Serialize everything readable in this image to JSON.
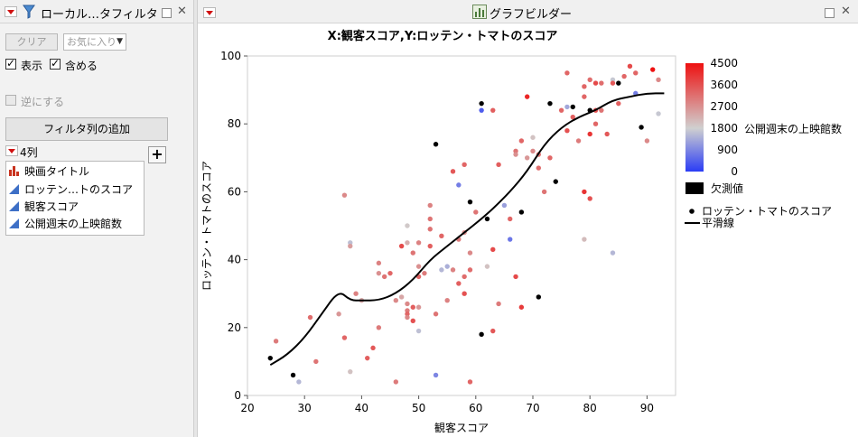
{
  "left_panel": {
    "title": "ローカル…タフィルタ",
    "clear_label": "クリア",
    "favorites_label": "お気に入り",
    "show_label": "表示",
    "include_label": "含める",
    "invert_label": "逆にする",
    "add_filter_label": "フィルタ列の追加",
    "col_count": "4列",
    "columns": [
      {
        "label": "映画タイトル",
        "icon": "nominal-bar-icon"
      },
      {
        "label": "ロッテン…トのスコア",
        "icon": "continuous-triangle-icon"
      },
      {
        "label": "観客スコア",
        "icon": "continuous-triangle-icon"
      },
      {
        "label": "公開週末の上映館数",
        "icon": "continuous-triangle-icon"
      }
    ]
  },
  "right_panel": {
    "title": "グラフビルダー"
  },
  "chart_data": {
    "type": "scatter",
    "title": "X:観客スコア,Y:ロッテン・トマトのスコア",
    "xlabel": "観客スコア",
    "ylabel": "ロッテン・トマトのスコア",
    "xlim": [
      20,
      95
    ],
    "ylim": [
      0,
      100
    ],
    "xticks": [
      20,
      30,
      40,
      50,
      60,
      70,
      80,
      90
    ],
    "yticks": [
      0,
      20,
      40,
      60,
      80,
      100
    ],
    "color_scale": {
      "title": "公開週末の上映館数",
      "min": 0,
      "max": 4500,
      "ticks": [
        4500,
        3600,
        2700,
        1800,
        900,
        0
      ],
      "low_color": "#2a3cf5",
      "mid_color": "#d0d0d0",
      "high_color": "#ee1111",
      "missing_label": "欠測値",
      "missing_color": "#000000"
    },
    "legend": [
      {
        "label": "ロッテン・トマトのスコア",
        "marker": "dot"
      },
      {
        "label": "平滑線",
        "marker": "line"
      }
    ],
    "points": [
      [
        24,
        11,
        null
      ],
      [
        25,
        16,
        3000
      ],
      [
        28,
        6,
        null
      ],
      [
        29,
        4,
        1500
      ],
      [
        31,
        23,
        3200
      ],
      [
        32,
        10,
        3100
      ],
      [
        36,
        24,
        2600
      ],
      [
        37,
        59,
        2800
      ],
      [
        37,
        17,
        3300
      ],
      [
        38,
        45,
        1600
      ],
      [
        38,
        44,
        2500
      ],
      [
        38,
        7,
        2000
      ],
      [
        39,
        30,
        2900
      ],
      [
        41,
        11,
        3400
      ],
      [
        42,
        14,
        3500
      ],
      [
        43,
        39,
        2900
      ],
      [
        43,
        36,
        2700
      ],
      [
        43,
        20,
        3000
      ],
      [
        44,
        35,
        3100
      ],
      [
        46,
        4,
        3000
      ],
      [
        46,
        28,
        2800
      ],
      [
        47,
        44,
        3700
      ],
      [
        47,
        29,
        2400
      ],
      [
        48,
        45,
        2300
      ],
      [
        48,
        50,
        1900
      ],
      [
        48,
        27,
        2800
      ],
      [
        48,
        25,
        3000
      ],
      [
        48,
        24,
        3300
      ],
      [
        48,
        23,
        2800
      ],
      [
        49,
        26,
        3400
      ],
      [
        49,
        22,
        3600
      ],
      [
        49,
        42,
        3100
      ],
      [
        50,
        38,
        2700
      ],
      [
        50,
        35,
        3300
      ],
      [
        50,
        19,
        1600
      ],
      [
        50,
        26,
        2600
      ],
      [
        50,
        45,
        2900
      ],
      [
        51,
        36,
        3000
      ],
      [
        52,
        56,
        2900
      ],
      [
        52,
        52,
        3100
      ],
      [
        52,
        44,
        3400
      ],
      [
        53,
        74,
        null
      ],
      [
        53,
        24,
        3100
      ],
      [
        53,
        6,
        900
      ],
      [
        54,
        47,
        3300
      ],
      [
        54,
        37,
        1500
      ],
      [
        55,
        38,
        1400
      ],
      [
        55,
        28,
        2900
      ],
      [
        56,
        66,
        3500
      ],
      [
        56,
        37,
        2900
      ],
      [
        57,
        62,
        800
      ],
      [
        57,
        33,
        3400
      ],
      [
        57,
        46,
        3000
      ],
      [
        58,
        68,
        3300
      ],
      [
        58,
        35,
        3200
      ],
      [
        58,
        30,
        3600
      ],
      [
        58,
        48,
        2700
      ],
      [
        59,
        57,
        null
      ],
      [
        59,
        37,
        3200
      ],
      [
        59,
        4,
        3300
      ],
      [
        59,
        42,
        2800
      ],
      [
        60,
        54,
        3100
      ],
      [
        61,
        86,
        null
      ],
      [
        61,
        84,
        400
      ],
      [
        61,
        18,
        null
      ],
      [
        62,
        52,
        null
      ],
      [
        62,
        38,
        2000
      ],
      [
        63,
        84,
        3400
      ],
      [
        63,
        43,
        3700
      ],
      [
        63,
        19,
        3500
      ],
      [
        64,
        27,
        3000
      ],
      [
        64,
        68,
        3400
      ],
      [
        65,
        56,
        1200
      ],
      [
        66,
        46,
        700
      ],
      [
        67,
        72,
        3100
      ],
      [
        67,
        35,
        3700
      ],
      [
        67,
        71,
        2700
      ],
      [
        68,
        75,
        3300
      ],
      [
        68,
        54,
        null
      ],
      [
        68,
        26,
        3900
      ],
      [
        69,
        88,
        4200
      ],
      [
        69,
        70,
        2600
      ],
      [
        70,
        76,
        2000
      ],
      [
        70,
        72,
        2800
      ],
      [
        71,
        71,
        3100
      ],
      [
        71,
        29,
        null
      ],
      [
        71,
        67,
        3200
      ],
      [
        72,
        60,
        3100
      ],
      [
        73,
        86,
        null
      ],
      [
        73,
        70,
        3300
      ],
      [
        74,
        63,
        null
      ],
      [
        75,
        84,
        3300
      ],
      [
        76,
        78,
        3600
      ],
      [
        76,
        85,
        1300
      ],
      [
        77,
        85,
        null
      ],
      [
        77,
        82,
        3400
      ],
      [
        78,
        75,
        3000
      ],
      [
        79,
        88,
        3300
      ],
      [
        79,
        91,
        3300
      ],
      [
        79,
        60,
        4000
      ],
      [
        80,
        93,
        3200
      ],
      [
        80,
        84,
        null
      ],
      [
        80,
        77,
        4000
      ],
      [
        80,
        58,
        3600
      ],
      [
        81,
        84,
        3600
      ],
      [
        81,
        80,
        3300
      ],
      [
        81,
        92,
        3700
      ],
      [
        82,
        92,
        3200
      ],
      [
        82,
        84,
        3100
      ],
      [
        83,
        77,
        3500
      ],
      [
        84,
        93,
        1700
      ],
      [
        84,
        42,
        1500
      ],
      [
        85,
        92,
        null
      ],
      [
        85,
        86,
        3400
      ],
      [
        86,
        94,
        3300
      ],
      [
        87,
        97,
        3700
      ],
      [
        88,
        89,
        800
      ],
      [
        88,
        95,
        3300
      ],
      [
        89,
        79,
        null
      ],
      [
        90,
        75,
        2800
      ],
      [
        91,
        96,
        4500
      ],
      [
        92,
        93,
        2800
      ],
      [
        92,
        83,
        1700
      ],
      [
        79,
        46,
        2100
      ],
      [
        84,
        92,
        3500
      ],
      [
        76,
        95,
        3300
      ],
      [
        66,
        52,
        3300
      ],
      [
        52,
        49,
        3100
      ],
      [
        45,
        36,
        3300
      ],
      [
        40,
        28,
        2400
      ]
    ],
    "smooth_line": [
      [
        24,
        9
      ],
      [
        27,
        12
      ],
      [
        30,
        17
      ],
      [
        33,
        24
      ],
      [
        36,
        31
      ],
      [
        38,
        28
      ],
      [
        40,
        28
      ],
      [
        43,
        28
      ],
      [
        46,
        30
      ],
      [
        49,
        34
      ],
      [
        52,
        40
      ],
      [
        55,
        44
      ],
      [
        58,
        48
      ],
      [
        61,
        52
      ],
      [
        63,
        55
      ],
      [
        66,
        60
      ],
      [
        69,
        66
      ],
      [
        72,
        74
      ],
      [
        75,
        79
      ],
      [
        78,
        82
      ],
      [
        81,
        84
      ],
      [
        84,
        87
      ],
      [
        87,
        88
      ],
      [
        90,
        89
      ],
      [
        93,
        89
      ]
    ]
  }
}
